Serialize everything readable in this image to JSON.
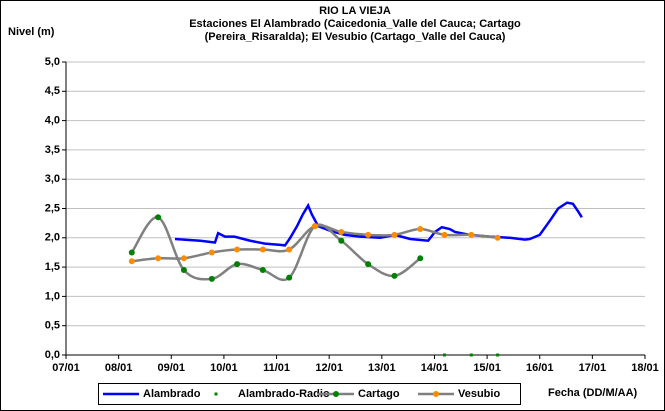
{
  "chart_data": {
    "type": "line",
    "title": "RIO LA VIEJA",
    "subtitle": [
      "Estaciones El Alambrado (Caicedonia_Valle del Cauca; Cartago",
      "(Pereira_Risaralda);  El Vesubio (Cartago_Valle del Cauca)"
    ],
    "ylabel": "Nivel (m)",
    "xlabel": "Fecha (DD/M/AA)",
    "xlim": [
      7,
      18
    ],
    "xticks": [
      {
        "value": 7,
        "label": "07/01"
      },
      {
        "value": 8,
        "label": "08/01"
      },
      {
        "value": 9,
        "label": "09/01"
      },
      {
        "value": 10,
        "label": "10/01"
      },
      {
        "value": 11,
        "label": "11/01"
      },
      {
        "value": 12,
        "label": "12/01"
      },
      {
        "value": 13,
        "label": "13/01"
      },
      {
        "value": 14,
        "label": "14/01"
      },
      {
        "value": 15,
        "label": "15/01"
      },
      {
        "value": 16,
        "label": "16/01"
      },
      {
        "value": 17,
        "label": "17/01"
      },
      {
        "value": 18,
        "label": "18/01"
      }
    ],
    "ylim": [
      0,
      5
    ],
    "yticks": [
      {
        "value": 0,
        "label": "0,0"
      },
      {
        "value": 0.5,
        "label": "0,5"
      },
      {
        "value": 1,
        "label": "1,0"
      },
      {
        "value": 1.5,
        "label": "1,5"
      },
      {
        "value": 2,
        "label": "2,0"
      },
      {
        "value": 2.5,
        "label": "2,5"
      },
      {
        "value": 3,
        "label": "3,0"
      },
      {
        "value": 3.5,
        "label": "3,5"
      },
      {
        "value": 4,
        "label": "4,0"
      },
      {
        "value": 4.5,
        "label": "4,5"
      },
      {
        "value": 5,
        "label": "5,0"
      }
    ],
    "grid": true,
    "legend": "bottom",
    "series": [
      {
        "name": "Alambrado",
        "color": "#0000ff",
        "line": true,
        "marker": false,
        "smooth": false,
        "x": [
          9.07,
          9.55,
          9.83,
          9.89,
          10.02,
          10.2,
          10.5,
          10.78,
          11.07,
          11.16,
          11.26,
          11.39,
          11.5,
          11.6,
          11.67,
          11.79,
          12.02,
          12.3,
          12.59,
          12.97,
          13.25,
          13.54,
          13.88,
          14.01,
          14.14,
          14.29,
          14.39,
          14.67,
          15.05,
          15.43,
          15.72,
          15.81,
          16.0,
          16.2,
          16.35,
          16.52,
          16.63,
          16.73,
          16.8
        ],
        "values": [
          1.98,
          1.95,
          1.92,
          2.08,
          2.02,
          2.02,
          1.95,
          1.9,
          1.88,
          1.87,
          2.0,
          2.2,
          2.4,
          2.55,
          2.4,
          2.2,
          2.12,
          2.05,
          2.02,
          2.0,
          2.05,
          1.98,
          1.95,
          2.1,
          2.18,
          2.15,
          2.1,
          2.05,
          2.02,
          2.0,
          1.97,
          1.98,
          2.05,
          2.3,
          2.5,
          2.6,
          2.58,
          2.45,
          2.35
        ]
      },
      {
        "name": "Alambrado-Radio",
        "color": "#008000",
        "line": false,
        "marker": "square",
        "smooth": false,
        "x": [
          14.19,
          14.7,
          15.2
        ],
        "values": [
          0,
          0,
          0
        ]
      },
      {
        "name": "Cartago",
        "color": "#808080",
        "marker_color": "#008000",
        "line": true,
        "marker": "circle",
        "smooth": true,
        "x": [
          8.25,
          8.75,
          9.24,
          9.77,
          10.25,
          10.74,
          11.24,
          11.73,
          12.23,
          12.74,
          13.24,
          13.73
        ],
        "values": [
          1.75,
          2.35,
          1.45,
          1.3,
          1.55,
          1.45,
          1.32,
          2.2,
          1.95,
          1.55,
          1.35,
          1.65
        ]
      },
      {
        "name": "Vesubio",
        "color": "#808080",
        "marker_color": "#ff8c00",
        "line": true,
        "marker": "circle",
        "smooth": true,
        "x": [
          8.25,
          8.75,
          9.24,
          9.77,
          10.25,
          10.74,
          11.24,
          11.73,
          12.23,
          12.74,
          13.24,
          13.73,
          14.19,
          14.7,
          15.2
        ],
        "values": [
          1.6,
          1.65,
          1.65,
          1.75,
          1.8,
          1.8,
          1.8,
          2.2,
          2.1,
          2.05,
          2.05,
          2.15,
          2.05,
          2.05,
          2.0
        ]
      }
    ]
  }
}
